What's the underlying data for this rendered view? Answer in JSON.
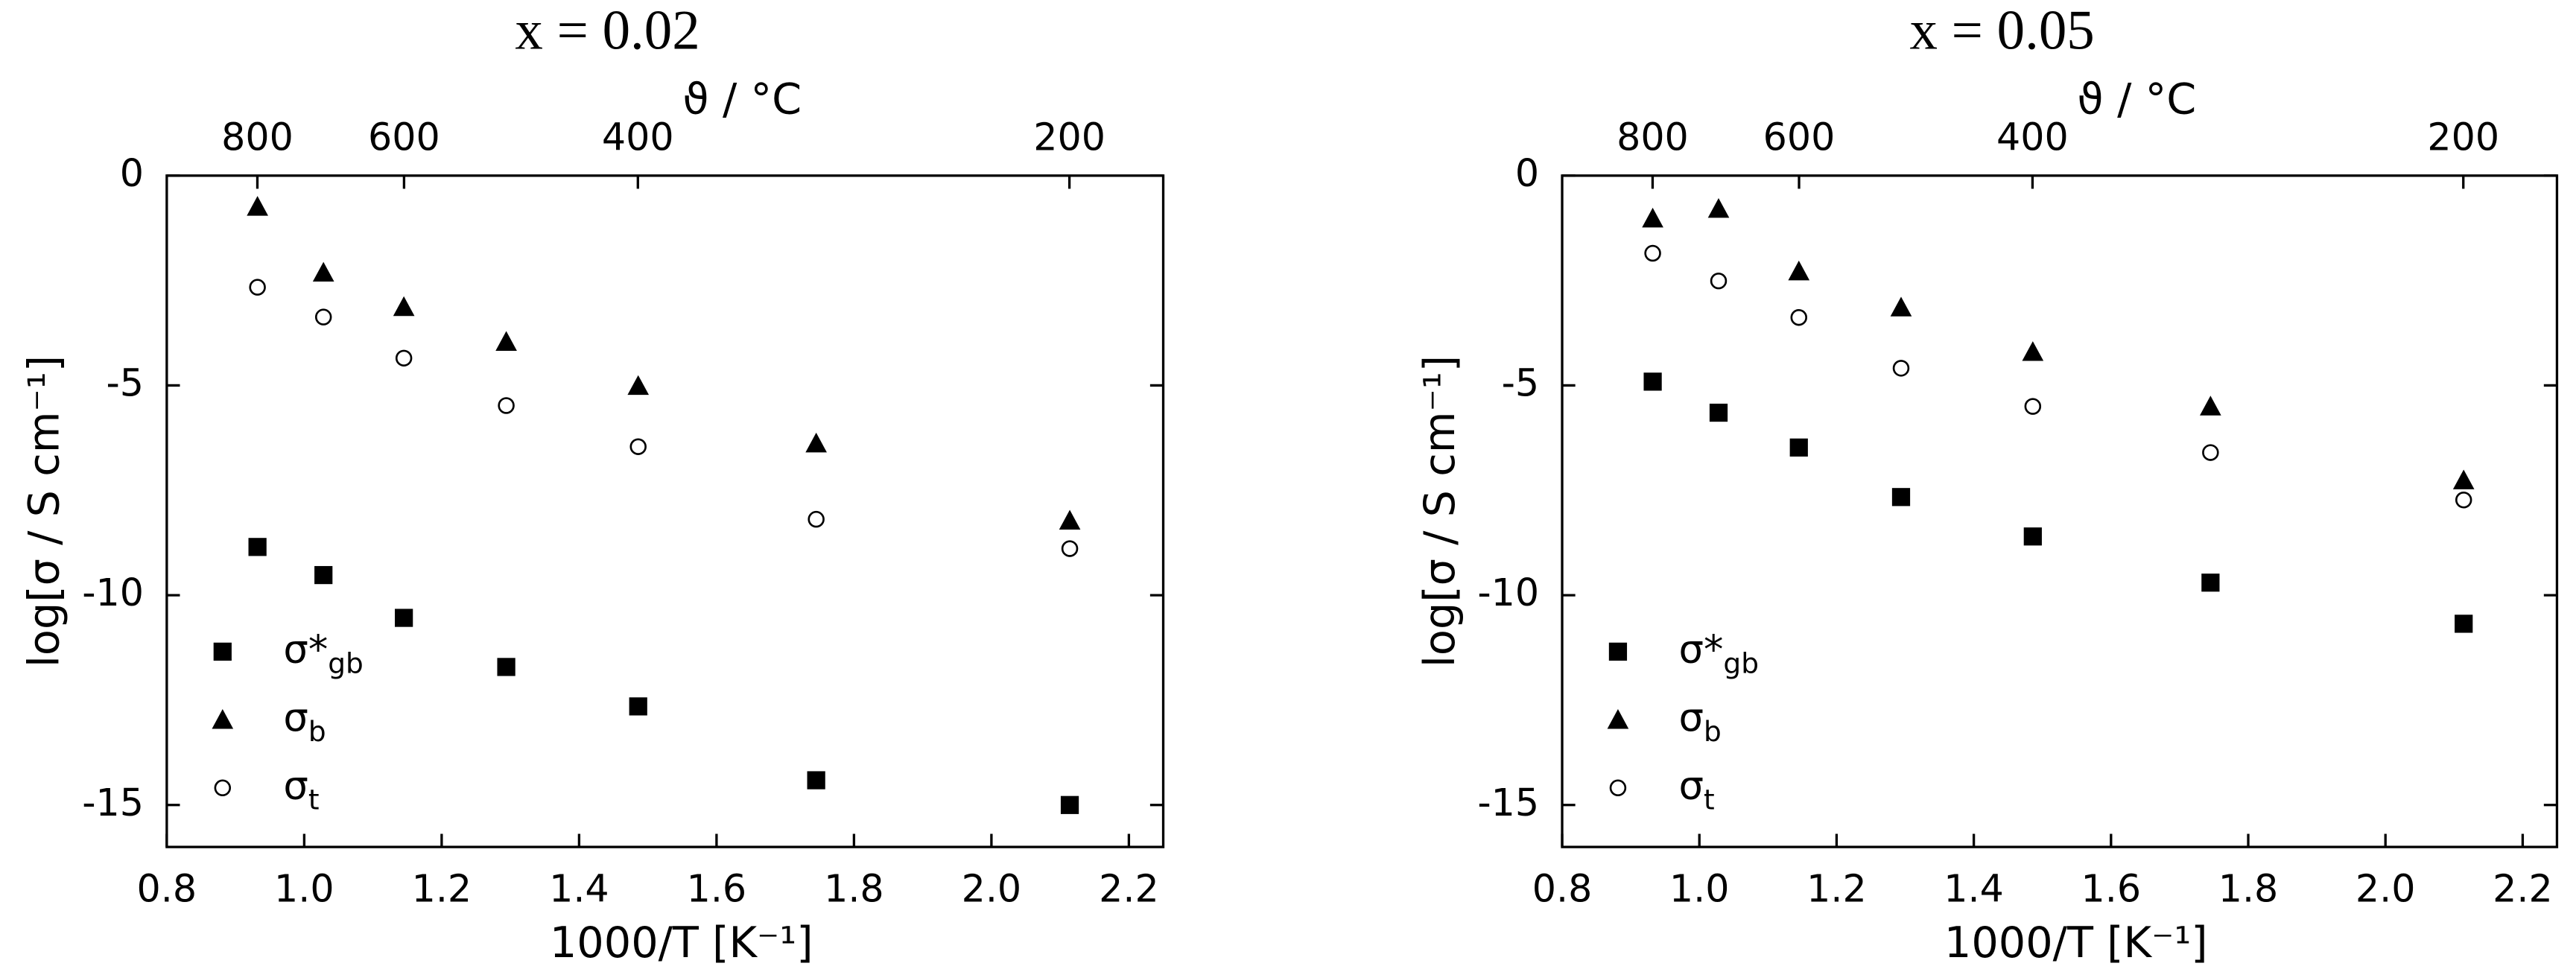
{
  "chart_data": [
    {
      "type": "scatter",
      "title": "x = 0.02",
      "xlabel": "1000/T [K⁻¹]",
      "ylabel": "log[σ / S cm⁻¹]",
      "x2label": "ϑ / °C",
      "xlim": [
        0.8,
        2.25
      ],
      "ylim": [
        -16,
        0
      ],
      "xticks": [
        0.8,
        {
          "value": 1,
          "label": "1.0"
        },
        1.2,
        1.4,
        1.6,
        1.8,
        {
          "value": 2,
          "label": "2.0"
        },
        2.2
      ],
      "yticks": [
        0,
        -5,
        -10,
        -15
      ],
      "x2ticks": [
        800,
        600,
        400,
        200
      ],
      "x": [
        0.932,
        1.028,
        1.145,
        1.294,
        1.486,
        1.745,
        2.114
      ],
      "series": [
        {
          "name": "σ*gb",
          "marker": "square",
          "color": "#000000",
          "values": [
            -8.85,
            -9.52,
            -10.54,
            -11.71,
            -12.65,
            -14.41,
            -15.0
          ]
        },
        {
          "name": "σb",
          "marker": "triangle",
          "color": "#000000",
          "values": [
            -0.74,
            -2.31,
            -3.13,
            -3.96,
            -5.01,
            -6.38,
            -8.22
          ]
        },
        {
          "name": "σt",
          "marker": "circle",
          "color": "#000000",
          "values": [
            -2.66,
            -3.37,
            -4.35,
            -5.48,
            -6.46,
            -8.19,
            -8.89
          ]
        }
      ]
    },
    {
      "type": "scatter",
      "title": "x = 0.05",
      "xlabel": "1000/T [K⁻¹]",
      "ylabel": "log[σ / S cm⁻¹]",
      "x2label": "ϑ / °C",
      "xlim": [
        0.8,
        2.25
      ],
      "ylim": [
        -16,
        0
      ],
      "xticks": [
        0.8,
        {
          "value": 1,
          "label": "1.0"
        },
        1.2,
        1.4,
        1.6,
        1.8,
        {
          "value": 2,
          "label": "2.0"
        },
        2.2
      ],
      "yticks": [
        0,
        -5,
        -10,
        -15
      ],
      "x2ticks": [
        800,
        600,
        400,
        200
      ],
      "x": [
        0.932,
        1.028,
        1.145,
        1.294,
        1.486,
        1.745,
        2.114
      ],
      "series": [
        {
          "name": "σ*gb",
          "marker": "square",
          "color": "#000000",
          "values": [
            -4.91,
            -5.65,
            -6.48,
            -7.66,
            -8.6,
            -9.7,
            -10.68
          ]
        },
        {
          "name": "σb",
          "marker": "triangle",
          "color": "#000000",
          "values": [
            -1.02,
            -0.79,
            -2.28,
            -3.14,
            -4.2,
            -5.5,
            -7.26
          ]
        },
        {
          "name": "σt",
          "marker": "circle",
          "color": "#000000",
          "values": [
            -1.85,
            -2.51,
            -3.38,
            -4.59,
            -5.5,
            -6.6,
            -7.73
          ]
        }
      ]
    }
  ]
}
